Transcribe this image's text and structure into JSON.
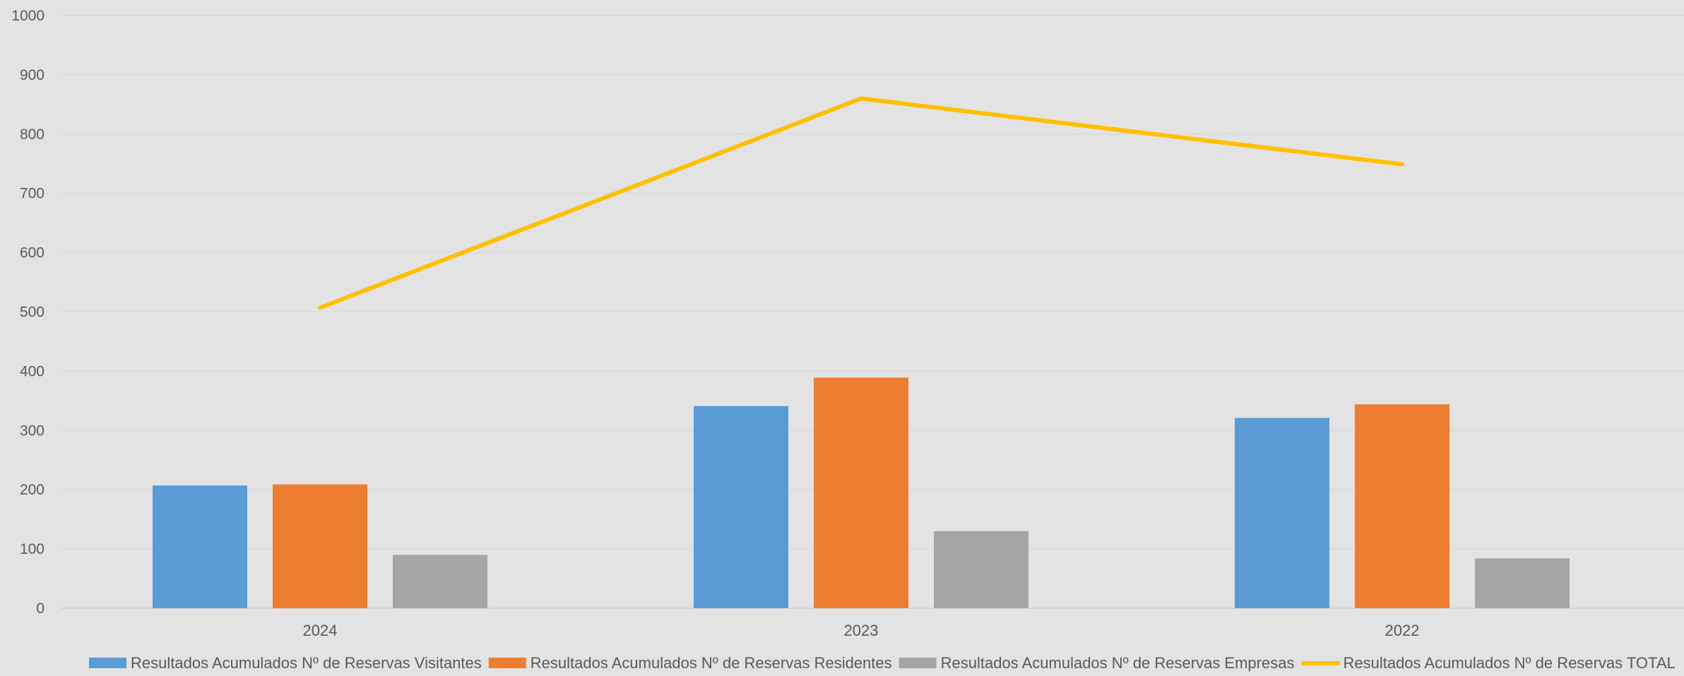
{
  "chart_data": {
    "type": "bar",
    "categories": [
      "2024",
      "2023",
      "2022"
    ],
    "series": [
      {
        "name": "Resultados Acumulados Nº de Reservas Visitantes",
        "type": "bar",
        "color": "#5b9bd5",
        "values": [
          207,
          341,
          321
        ]
      },
      {
        "name": "Resultados Acumulados Nº de Reservas Residentes",
        "type": "bar",
        "color": "#ed7d31",
        "values": [
          209,
          389,
          344
        ]
      },
      {
        "name": "Resultados Acumulados Nº de Reservas Empresas",
        "type": "bar",
        "color": "#a5a5a5",
        "values": [
          90,
          130,
          84
        ]
      },
      {
        "name": "Resultados Acumulados Nº de Reservas TOTAL",
        "type": "line",
        "color": "#ffc000",
        "values": [
          507,
          860,
          749
        ]
      }
    ],
    "yticks": [
      "0",
      "100",
      "200",
      "300",
      "400",
      "500",
      "600",
      "700",
      "800",
      "900",
      "1000"
    ],
    "ylim": [
      0,
      1000
    ],
    "grid": true,
    "legend": "bottom"
  }
}
